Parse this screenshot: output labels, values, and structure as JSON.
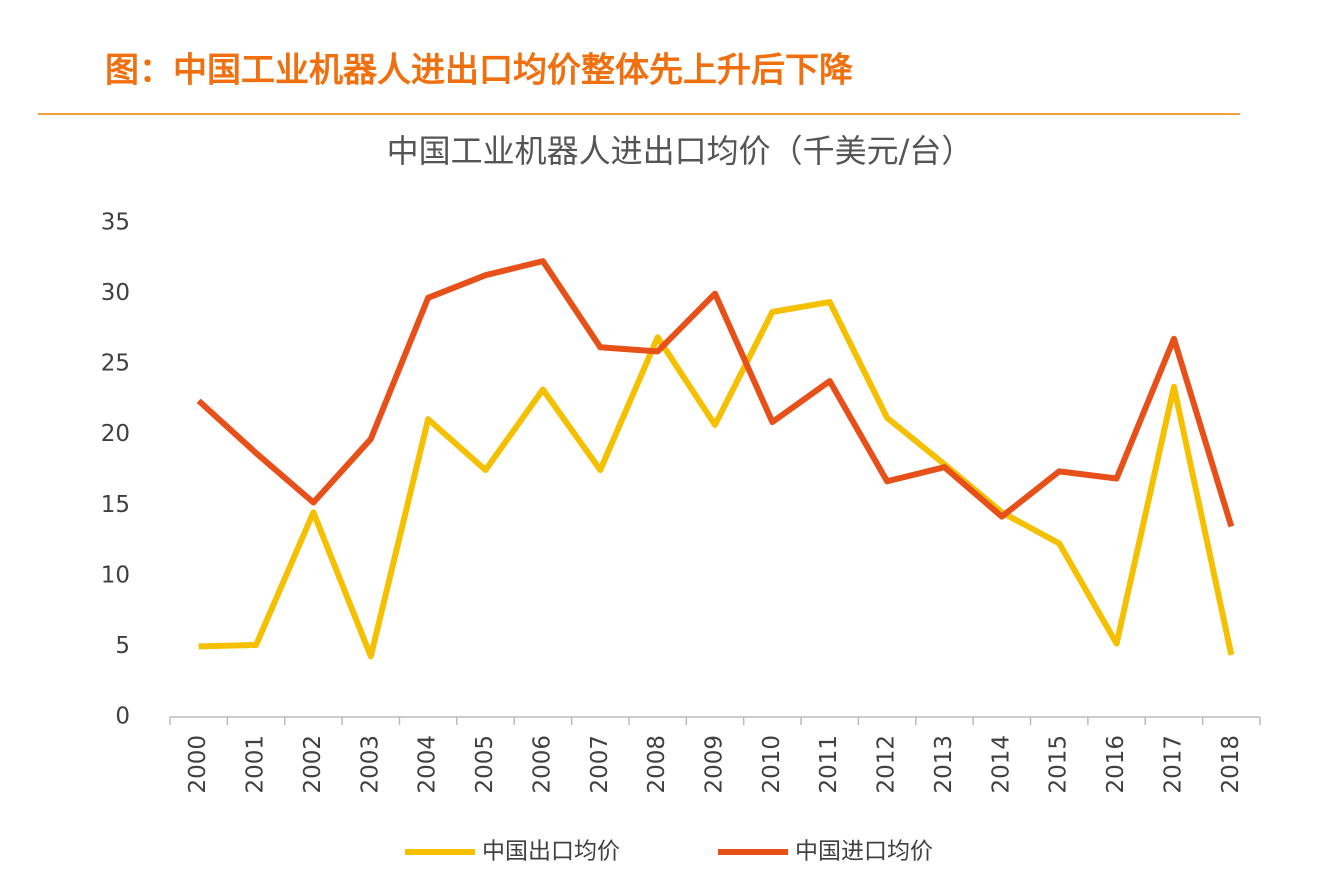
{
  "header": {
    "title": "图：中国工业机器人进出口均价整体先上升后下降"
  },
  "chart_data": {
    "type": "line",
    "title": "中国工业机器人进出口均价（千美元/台）",
    "categories": [
      "2000",
      "2001",
      "2002",
      "2003",
      "2004",
      "2005",
      "2006",
      "2007",
      "2008",
      "2009",
      "2010",
      "2011",
      "2012",
      "2013",
      "2014",
      "2015",
      "2016",
      "2017",
      "2018"
    ],
    "series": [
      {
        "name": "中国出口均价",
        "color": "#f5c000",
        "values": [
          5.0,
          5.1,
          14.5,
          4.3,
          21.1,
          17.5,
          23.2,
          17.5,
          26.9,
          20.7,
          28.7,
          29.4,
          21.2,
          17.9,
          14.5,
          12.3,
          5.2,
          23.4,
          4.4
        ]
      },
      {
        "name": "中国进口均价",
        "color": "#e8501a",
        "values": [
          22.4,
          18.7,
          15.2,
          19.7,
          29.7,
          31.3,
          32.3,
          26.2,
          25.9,
          30.0,
          20.9,
          23.8,
          16.7,
          17.7,
          14.2,
          17.4,
          16.9,
          26.8,
          13.5
        ]
      }
    ],
    "ylim": [
      0,
      35
    ],
    "yticks": [
      0,
      5,
      10,
      15,
      20,
      25,
      30,
      35
    ],
    "grid": false,
    "legend": "bottom"
  }
}
